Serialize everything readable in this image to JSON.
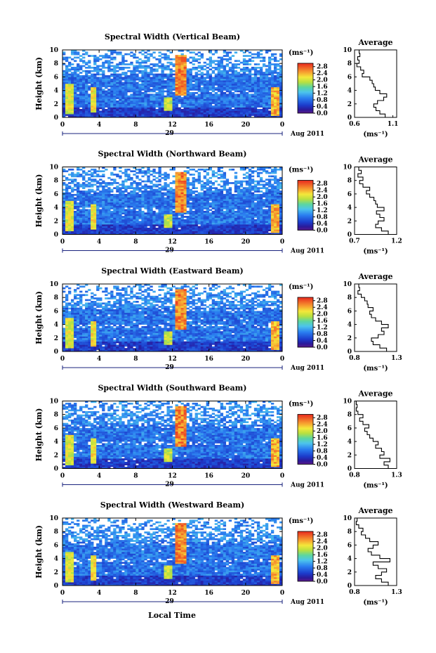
{
  "figure": {
    "x_axis_title": "Local Time",
    "date_label": "Aug 2011",
    "day_label": "29",
    "unit_label": "(ms⁻¹)",
    "average_title": "Average",
    "avg_unit_label": "(ms⁻¹)"
  },
  "chart_data": [
    {
      "type": "heatmap",
      "title": "Spectral Width (Vertical Beam)",
      "ylabel": "Height (km)",
      "xlabel": "",
      "x_ticks": [
        "0",
        "4",
        "8",
        "12",
        "16",
        "20",
        "0"
      ],
      "y_ticks": [
        "0",
        "2",
        "4",
        "6",
        "8",
        "10"
      ],
      "xlim": [
        0,
        24
      ],
      "ylim": [
        0,
        10
      ],
      "colorbar": {
        "unit": "(ms⁻¹)",
        "ticks": [
          "0.0",
          "0.4",
          "0.8",
          "1.2",
          "1.6",
          "2.0",
          "2.4",
          "2.8"
        ],
        "range": [
          0,
          3.0
        ]
      },
      "profile": {
        "title": "Average",
        "xlabel": "(ms⁻¹)",
        "x_ticks": [
          "0.6",
          "1.1"
        ],
        "xlim": [
          0.6,
          1.15
        ],
        "height": [
          0,
          0.5,
          1,
          1.5,
          2,
          2.5,
          3,
          3.5,
          4,
          4.5,
          5,
          5.5,
          6,
          6.5,
          7,
          7.5,
          8,
          8.5,
          9,
          9.5,
          10
        ],
        "value": [
          1.1,
          1.0,
          0.93,
          0.88,
          0.85,
          0.9,
          0.98,
          1.02,
          0.93,
          0.87,
          0.85,
          0.83,
          0.8,
          0.7,
          0.72,
          0.68,
          0.63,
          0.66,
          0.64,
          0.67,
          0.66
        ]
      }
    },
    {
      "type": "heatmap",
      "title": "Spectral Width (Northward Beam)",
      "ylabel": "Height (km)",
      "xlabel": "",
      "x_ticks": [
        "0",
        "4",
        "8",
        "12",
        "16",
        "20",
        "0"
      ],
      "y_ticks": [
        "0",
        "2",
        "4",
        "6",
        "8",
        "10"
      ],
      "xlim": [
        0,
        24
      ],
      "ylim": [
        0,
        10
      ],
      "colorbar": {
        "unit": "(ms⁻¹)",
        "ticks": [
          "0.0",
          "0.4",
          "0.8",
          "1.2",
          "1.6",
          "2.0",
          "2.4",
          "2.8"
        ],
        "range": [
          0,
          3.0
        ]
      },
      "profile": {
        "title": "Average",
        "xlabel": "(ms⁻¹)",
        "x_ticks": [
          "0.7",
          "1.2"
        ],
        "xlim": [
          0.7,
          1.2
        ],
        "height": [
          0,
          0.5,
          1,
          1.5,
          2,
          2.5,
          3,
          3.5,
          4,
          4.5,
          5,
          5.5,
          6,
          6.5,
          7,
          7.5,
          8,
          8.5,
          9,
          9.5,
          10
        ],
        "value": [
          1.18,
          1.1,
          1.02,
          0.95,
          0.98,
          1.05,
          1.0,
          0.96,
          1.05,
          0.97,
          0.95,
          0.93,
          0.88,
          0.84,
          0.88,
          0.8,
          0.76,
          0.8,
          0.74,
          0.78,
          0.75
        ]
      }
    },
    {
      "type": "heatmap",
      "title": "Spectral Width (Eastward Beam)",
      "ylabel": "Height (km)",
      "xlabel": "",
      "x_ticks": [
        "0",
        "4",
        "8",
        "12",
        "16",
        "20",
        "0"
      ],
      "y_ticks": [
        "0",
        "2",
        "4",
        "6",
        "8",
        "10"
      ],
      "xlim": [
        0,
        24
      ],
      "ylim": [
        0,
        10
      ],
      "colorbar": {
        "unit": "(ms⁻¹)",
        "ticks": [
          "0.0",
          "0.4",
          "0.8",
          "1.2",
          "1.6",
          "2.0",
          "2.4",
          "2.8"
        ],
        "range": [
          0,
          3.0
        ]
      },
      "profile": {
        "title": "Average",
        "xlabel": "(ms⁻¹)",
        "x_ticks": [
          "0.8",
          "1.3"
        ],
        "xlim": [
          0.8,
          1.3
        ],
        "height": [
          0,
          0.5,
          1,
          1.5,
          2,
          2.5,
          3,
          3.5,
          4,
          4.5,
          5,
          5.5,
          6,
          6.5,
          7,
          7.5,
          8,
          8.5,
          9,
          9.5,
          10
        ],
        "value": [
          1.25,
          1.18,
          1.1,
          1.02,
          1.0,
          1.08,
          1.15,
          1.12,
          1.2,
          1.12,
          1.05,
          1.0,
          0.98,
          1.02,
          0.96,
          0.95,
          0.92,
          0.88,
          0.84,
          0.86,
          0.85
        ]
      }
    },
    {
      "type": "heatmap",
      "title": "Spectral Width (Southward Beam)",
      "ylabel": "Height (km)",
      "xlabel": "",
      "x_ticks": [
        "0",
        "4",
        "8",
        "12",
        "16",
        "20",
        "0"
      ],
      "y_ticks": [
        "0",
        "2",
        "4",
        "6",
        "8",
        "10"
      ],
      "xlim": [
        0,
        24
      ],
      "ylim": [
        0,
        10
      ],
      "colorbar": {
        "unit": "(ms⁻¹)",
        "ticks": [
          "0.0",
          "0.4",
          "0.8",
          "1.2",
          "1.6",
          "2.0",
          "2.4",
          "2.8"
        ],
        "range": [
          0,
          3.0
        ]
      },
      "profile": {
        "title": "Average",
        "xlabel": "(ms⁻¹)",
        "x_ticks": [
          "0.8",
          "1.3"
        ],
        "xlim": [
          0.8,
          1.3
        ],
        "height": [
          0,
          0.5,
          1,
          1.5,
          2,
          2.5,
          3,
          3.5,
          4,
          4.5,
          5,
          5.5,
          6,
          6.5,
          7,
          7.5,
          8,
          8.5,
          9,
          9.5,
          10
        ],
        "value": [
          1.3,
          1.2,
          1.15,
          1.22,
          1.1,
          1.15,
          1.12,
          1.05,
          1.08,
          1.02,
          0.98,
          0.95,
          0.92,
          0.97,
          0.9,
          0.86,
          0.9,
          0.84,
          0.82,
          0.83,
          0.82
        ]
      }
    },
    {
      "type": "heatmap",
      "title": "Spectral Width (Westward Beam)",
      "ylabel": "Height (km)",
      "xlabel": "Local Time",
      "x_ticks": [
        "0",
        "4",
        "8",
        "12",
        "16",
        "20",
        "0"
      ],
      "y_ticks": [
        "0",
        "2",
        "4",
        "6",
        "8",
        "10"
      ],
      "xlim": [
        0,
        24
      ],
      "ylim": [
        0,
        10
      ],
      "colorbar": {
        "unit": "(ms⁻¹)",
        "ticks": [
          "0.0",
          "0.4",
          "0.8",
          "1.2",
          "1.6",
          "2.0",
          "2.4",
          "2.8"
        ],
        "range": [
          0,
          3.0
        ]
      },
      "profile": {
        "title": "Average",
        "xlabel": "(ms⁻¹)",
        "x_ticks": [
          "0.8",
          "1.3"
        ],
        "xlim": [
          0.8,
          1.3
        ],
        "height": [
          0,
          0.5,
          1,
          1.5,
          2,
          2.5,
          3,
          3.5,
          4,
          4.5,
          5,
          5.5,
          6,
          6.5,
          7,
          7.5,
          8,
          8.5,
          9,
          9.5,
          10
        ],
        "value": [
          1.28,
          1.2,
          1.12,
          1.05,
          1.12,
          1.18,
          1.08,
          1.02,
          1.22,
          1.1,
          1.0,
          0.96,
          1.02,
          1.08,
          0.98,
          0.93,
          0.88,
          0.9,
          0.85,
          0.82,
          0.83
        ]
      }
    }
  ]
}
